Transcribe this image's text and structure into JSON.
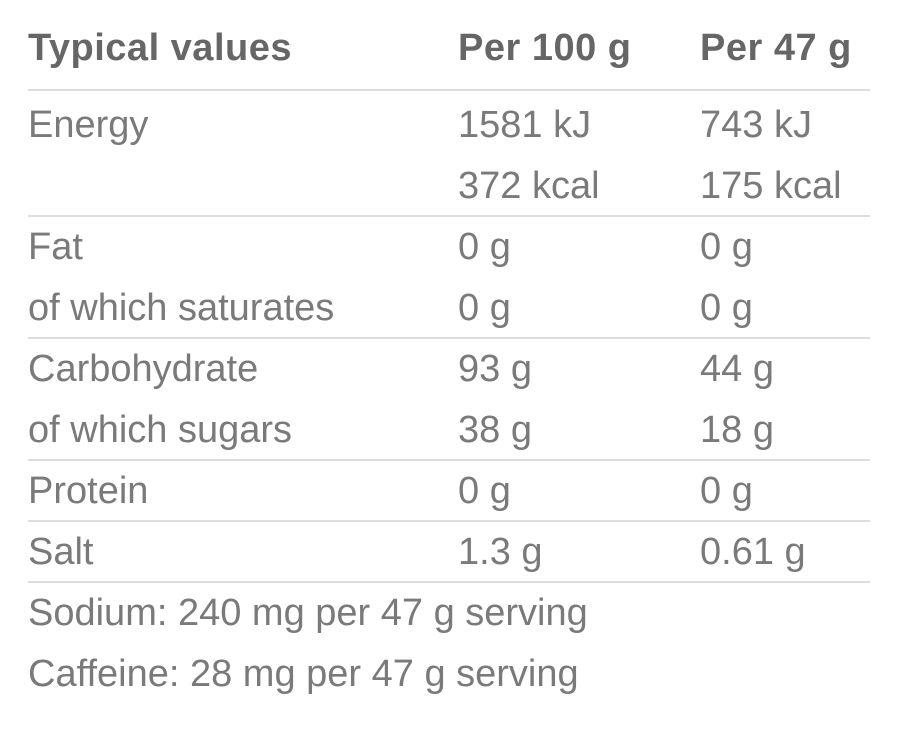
{
  "table": {
    "header": {
      "label": "Typical values",
      "per100": "Per 100 g",
      "perServing": "Per 47 g"
    },
    "groups": [
      [
        {
          "label": "Energy",
          "per100": "1581 kJ",
          "perServing": "743 kJ"
        },
        {
          "per100": "372 kcal",
          "perServing": "175 kcal"
        }
      ],
      [
        {
          "label": "Fat",
          "per100": "0 g",
          "perServing": "0 g"
        },
        {
          "label": "of which saturates",
          "per100": "0 g",
          "perServing": "0 g"
        }
      ],
      [
        {
          "label": "Carbohydrate",
          "per100": "93 g",
          "perServing": "44 g"
        },
        {
          "label": "of which sugars",
          "per100": "38 g",
          "perServing": "18 g"
        }
      ],
      [
        {
          "label": "Protein",
          "per100": "0 g",
          "perServing": "0 g"
        }
      ],
      [
        {
          "label": "Salt",
          "per100": "1.3 g",
          "perServing": "0.61 g"
        }
      ]
    ],
    "notes": [
      "Sodium: 240 mg per 47 g serving",
      "Caffeine: 28 mg per 47 g serving"
    ]
  }
}
